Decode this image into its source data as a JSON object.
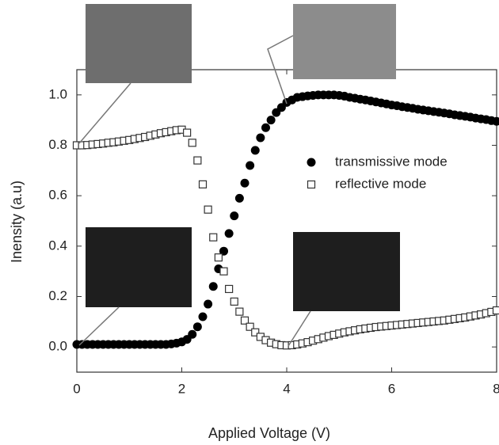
{
  "chart_data": {
    "type": "scatter",
    "xlabel": "Applied Voltage (V)",
    "ylabel": "Inensity (a.u)",
    "xlim": [
      0,
      8
    ],
    "ylim": [
      -0.1,
      1.1
    ],
    "xticks": [
      0,
      2,
      4,
      6,
      8
    ],
    "yticks": [
      {
        "value": 0,
        "label": "0.0"
      },
      0.2,
      0.4,
      0.6,
      0.8,
      {
        "value": 1,
        "label": "1.0"
      }
    ],
    "legend_position": "center right",
    "x": [
      0,
      0.1,
      0.2,
      0.3,
      0.4,
      0.5,
      0.6,
      0.7,
      0.8,
      0.9,
      1,
      1.1,
      1.2,
      1.3,
      1.4,
      1.5,
      1.6,
      1.7,
      1.8,
      1.9,
      2,
      2.1,
      2.2,
      2.3,
      2.4,
      2.5,
      2.6,
      2.7,
      2.8,
      2.9,
      3,
      3.1,
      3.2,
      3.3,
      3.4,
      3.5,
      3.6,
      3.7,
      3.8,
      3.9,
      4,
      4.1,
      4.2,
      4.3,
      4.4,
      4.5,
      4.6,
      4.7,
      4.8,
      4.9,
      5,
      5.1,
      5.2,
      5.3,
      5.4,
      5.5,
      5.6,
      5.7,
      5.8,
      5.9,
      6,
      6.1,
      6.2,
      6.3,
      6.4,
      6.5,
      6.6,
      6.7,
      6.8,
      6.9,
      7,
      7.1,
      7.2,
      7.3,
      7.4,
      7.5,
      7.6,
      7.7,
      7.8,
      7.9,
      8
    ],
    "series": [
      {
        "name": "transmissive mode",
        "color": "#000000",
        "marker": "circle",
        "values": [
          0.01,
          0.01,
          0.01,
          0.01,
          0.01,
          0.01,
          0.01,
          0.01,
          0.01,
          0.01,
          0.01,
          0.01,
          0.01,
          0.01,
          0.01,
          0.01,
          0.01,
          0.01,
          0.012,
          0.015,
          0.02,
          0.03,
          0.05,
          0.08,
          0.12,
          0.17,
          0.24,
          0.31,
          0.38,
          0.45,
          0.52,
          0.59,
          0.65,
          0.72,
          0.78,
          0.83,
          0.87,
          0.9,
          0.93,
          0.95,
          0.97,
          0.98,
          0.99,
          0.993,
          0.996,
          0.998,
          1,
          1,
          1,
          1,
          0.998,
          0.995,
          0.99,
          0.987,
          0.983,
          0.98,
          0.976,
          0.972,
          0.968,
          0.964,
          0.96,
          0.957,
          0.953,
          0.95,
          0.947,
          0.943,
          0.94,
          0.937,
          0.934,
          0.931,
          0.928,
          0.925,
          0.921,
          0.918,
          0.915,
          0.912,
          0.908,
          0.905,
          0.902,
          0.898,
          0.895
        ]
      },
      {
        "name": "reflective mode",
        "color": "#333333",
        "marker": "square",
        "values": [
          0.8,
          0.8,
          0.801,
          0.803,
          0.805,
          0.807,
          0.81,
          0.812,
          0.815,
          0.818,
          0.821,
          0.825,
          0.829,
          0.833,
          0.838,
          0.843,
          0.848,
          0.852,
          0.856,
          0.86,
          0.862,
          0.85,
          0.81,
          0.74,
          0.645,
          0.545,
          0.435,
          0.355,
          0.3,
          0.23,
          0.18,
          0.14,
          0.105,
          0.08,
          0.058,
          0.04,
          0.027,
          0.017,
          0.011,
          0.007,
          0.006,
          0.007,
          0.01,
          0.014,
          0.019,
          0.025,
          0.031,
          0.037,
          0.043,
          0.048,
          0.053,
          0.058,
          0.062,
          0.066,
          0.07,
          0.073,
          0.076,
          0.079,
          0.081,
          0.083,
          0.085,
          0.087,
          0.089,
          0.091,
          0.093,
          0.095,
          0.097,
          0.099,
          0.101,
          0.103,
          0.105,
          0.108,
          0.111,
          0.114,
          0.117,
          0.121,
          0.125,
          0.129,
          0.134,
          0.139,
          0.145
        ]
      }
    ]
  }
}
